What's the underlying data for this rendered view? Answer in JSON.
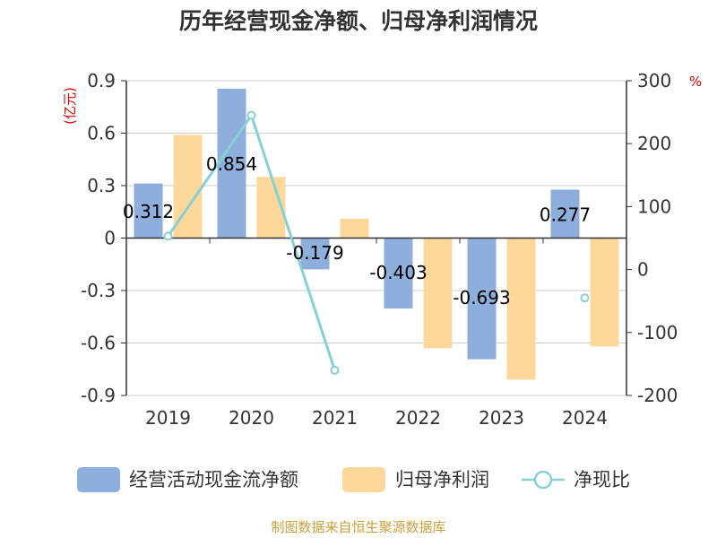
{
  "chart_data": {
    "type": "bar",
    "title": "历年经营现金净额、归母净利润情况",
    "categories": [
      "2019",
      "2020",
      "2021",
      "2022",
      "2023",
      "2024"
    ],
    "series": [
      {
        "name": "经营活动现金流净额",
        "kind": "bar",
        "axis": "left",
        "values": [
          0.312,
          0.854,
          -0.179,
          -0.403,
          -0.693,
          0.277
        ],
        "labels": [
          "0.312",
          "0.854",
          "-0.179",
          "-0.403",
          "-0.693",
          "0.277"
        ],
        "color": "#8eaedb"
      },
      {
        "name": "归母净利润",
        "kind": "bar",
        "axis": "left",
        "values": [
          0.59,
          0.35,
          0.11,
          -0.63,
          -0.81,
          -0.62
        ],
        "color": "#fdd89a"
      },
      {
        "name": "净现比",
        "kind": "line",
        "axis": "right",
        "values": [
          53,
          245,
          -160,
          null,
          null,
          -45
        ],
        "color": "#86d0d6"
      }
    ],
    "y_left": {
      "unit": "(亿元)",
      "ylim": [
        -0.9,
        0.9
      ],
      "ticks": [
        0.9,
        0.6,
        0.3,
        0,
        -0.3,
        -0.6,
        -0.9
      ],
      "tick_labels": [
        "0.9",
        "0.6",
        "0.3",
        "0",
        "-0.3",
        "-0.6",
        "-0.9"
      ]
    },
    "y_right": {
      "unit": "%",
      "ylim": [
        -200,
        300
      ],
      "ticks": [
        300,
        200,
        100,
        0,
        -100,
        -200
      ],
      "tick_labels": [
        "300",
        "200",
        "100",
        "0",
        "-100",
        "-200"
      ]
    },
    "grid": true,
    "legend_position": "bottom",
    "unit_color": "#e00000"
  },
  "source": {
    "text": "制图数据来自恒生聚源数据库",
    "color": "#c8a03c"
  }
}
